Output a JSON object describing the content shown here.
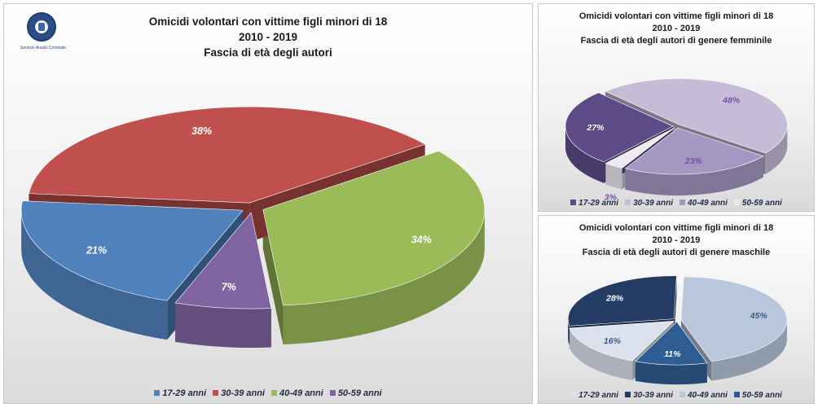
{
  "logo": {
    "caption": "Servizio Analisi Criminale"
  },
  "chart_data": [
    {
      "type": "pie",
      "title": "Omicidi volontari con vittime figli minori di 18",
      "subtitle": "2010 - 2019",
      "subtitle2": "Fascia di età degli autori",
      "categories": [
        "17-29 anni",
        "30-39 anni",
        "40-49 anni",
        "50-59 anni"
      ],
      "values": [
        21,
        38,
        34,
        7
      ],
      "value_labels": [
        "21%",
        "38%",
        "34%",
        "7%"
      ],
      "colors": [
        "#4f81bd",
        "#c0504d",
        "#9bbb59",
        "#8064a2"
      ],
      "label_color": "#ffffff",
      "legend_position": "bottom"
    },
    {
      "type": "pie",
      "title": "Omicidi volontari con vittime figli minori di 18",
      "subtitle": "2010 - 2019",
      "subtitle2": "Fascia di età degli autori di genere femminile",
      "categories": [
        "17-29 anni",
        "30-39 anni",
        "40-49 anni",
        "50-59 anni"
      ],
      "values": [
        27,
        48,
        23,
        3
      ],
      "value_labels": [
        "27%",
        "48%",
        "23%",
        "3%"
      ],
      "colors": [
        "#5c4b86",
        "#c6bcd8",
        "#a497c2",
        "#ecebf2"
      ],
      "label_colors": [
        "#ffffff",
        "#7a4ea8",
        "#7a4ea8",
        "#7a4ea8"
      ],
      "legend_position": "bottom"
    },
    {
      "type": "pie",
      "title": "Omicidi volontari con vittime figli minori di 18",
      "subtitle": "2010 - 2019",
      "subtitle2": "Fascia di età degli autori di genere maschile",
      "categories": [
        "17-29 anni",
        "30-39 anni",
        "40-49 anni",
        "50-59 anni"
      ],
      "values": [
        16,
        28,
        45,
        11
      ],
      "value_labels": [
        "16%",
        "28%",
        "45%",
        "11%"
      ],
      "colors": [
        "#dbe2ee",
        "#243c64",
        "#b9c8dc",
        "#2e5d93"
      ],
      "label_colors": [
        "#3a5a8c",
        "#ffffff",
        "#3a5a8c",
        "#ffffff"
      ],
      "legend_position": "bottom"
    }
  ]
}
